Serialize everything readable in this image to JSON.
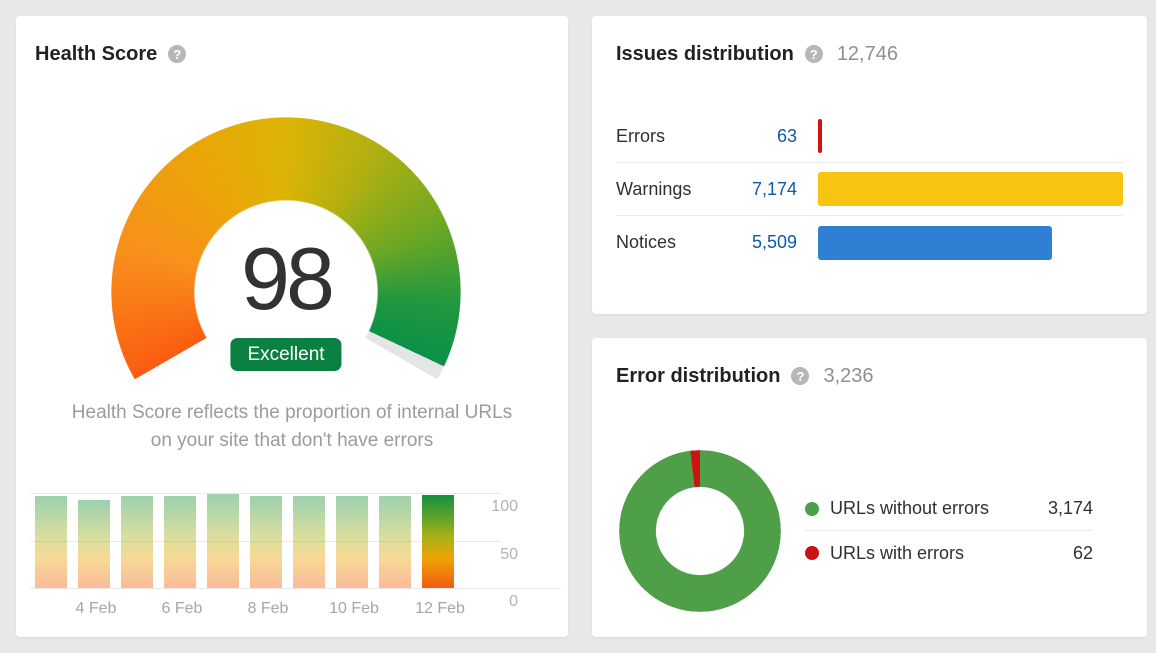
{
  "help_icon": "?",
  "health_card": {
    "title": "Health Score",
    "score": "98",
    "badge": "Excellent",
    "description_line1": "Health Score reflects the proportion of internal URLs",
    "description_line2": "on your site that don't have errors"
  },
  "issues_card": {
    "title": "Issues distribution",
    "total": "12,746",
    "rows": [
      {
        "label": "Errors",
        "value": "63",
        "num": 63,
        "color": "#d51212"
      },
      {
        "label": "Warnings",
        "value": "7,174",
        "num": 7174,
        "color": "#f8c412"
      },
      {
        "label": "Notices",
        "value": "5,509",
        "num": 5509,
        "color": "#2f80d4"
      }
    ]
  },
  "error_card": {
    "title": "Error distribution",
    "total": "3,236",
    "legend": [
      {
        "label": "URLs without errors",
        "value": "3,174",
        "num": 3174,
        "color": "#4f9e48"
      },
      {
        "label": "URLs with errors",
        "value": "62",
        "num": 62,
        "color": "#cc1212"
      }
    ]
  },
  "chart_data": [
    {
      "type": "gauge",
      "title": "Health Score",
      "value": 98,
      "min": 0,
      "max": 100,
      "label": "Excellent",
      "arc_degrees": 240,
      "gradient_colors": [
        "#fb5c10",
        "#f8901c",
        "#eaa606",
        "#dcb405",
        "#b2b011",
        "#6aa724",
        "#22973f",
        "#0a9148"
      ],
      "remainder_color": "#e4e5e7"
    },
    {
      "type": "bar",
      "title": "Health Score history",
      "x": [
        "3 Feb",
        "4 Feb",
        "5 Feb",
        "6 Feb",
        "7 Feb",
        "8 Feb",
        "9 Feb",
        "10 Feb",
        "11 Feb",
        "12 Feb"
      ],
      "values": [
        97,
        93,
        97,
        97,
        99,
        97,
        97,
        97,
        97,
        98
      ],
      "ylim": [
        0,
        100
      ],
      "yticks": [
        0,
        50,
        100
      ],
      "xticks_shown": [
        "4 Feb",
        "6 Feb",
        "8 Feb",
        "10 Feb",
        "12 Feb"
      ],
      "highlight_last": true,
      "grid": true,
      "yaxis_position": "right"
    },
    {
      "type": "bar",
      "orientation": "horizontal",
      "title": "Issues distribution",
      "total": 12746,
      "categories": [
        "Errors",
        "Warnings",
        "Notices"
      ],
      "values": [
        63,
        7174,
        5509
      ],
      "colors": [
        "#d51212",
        "#f8c412",
        "#2f80d4"
      ]
    },
    {
      "type": "pie",
      "subtype": "donut",
      "title": "Error distribution",
      "total": 3236,
      "labels": [
        "URLs without errors",
        "URLs with errors"
      ],
      "values": [
        3174,
        62
      ],
      "colors": [
        "#4f9e48",
        "#cc1212"
      ],
      "legend_position": "right"
    }
  ]
}
